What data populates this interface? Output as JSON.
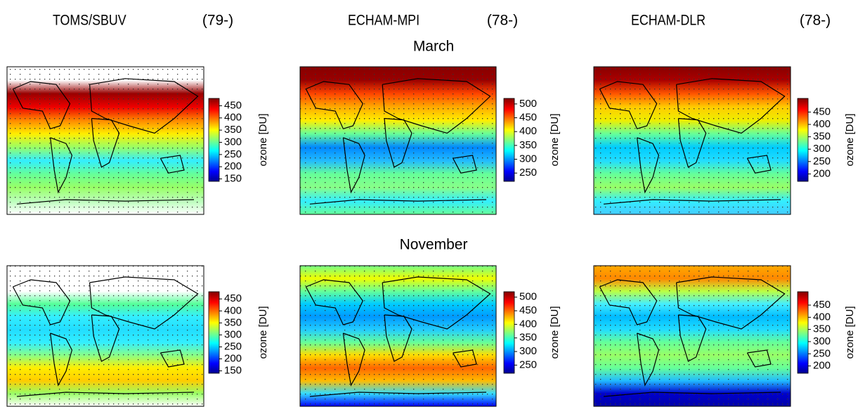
{
  "columns": [
    {
      "name": "TOMS/SBUV",
      "period": "(79-)",
      "colorbar": {
        "lim": [
          140,
          480
        ],
        "ticks": [
          150,
          200,
          250,
          300,
          350,
          400,
          450
        ]
      }
    },
    {
      "name": "ECHAM-MPI",
      "period": "(78-)",
      "colorbar": {
        "lim": [
          220,
          520
        ],
        "ticks": [
          250,
          300,
          350,
          400,
          450,
          500
        ]
      }
    },
    {
      "name": "ECHAM-DLR",
      "period": "(78-)",
      "colorbar": {
        "lim": [
          170,
          505
        ],
        "ticks": [
          200,
          250,
          300,
          350,
          400,
          450
        ]
      }
    }
  ],
  "rows": [
    {
      "label": "March"
    },
    {
      "label": "November"
    }
  ],
  "colorbar_label": "ozone [DU]"
}
